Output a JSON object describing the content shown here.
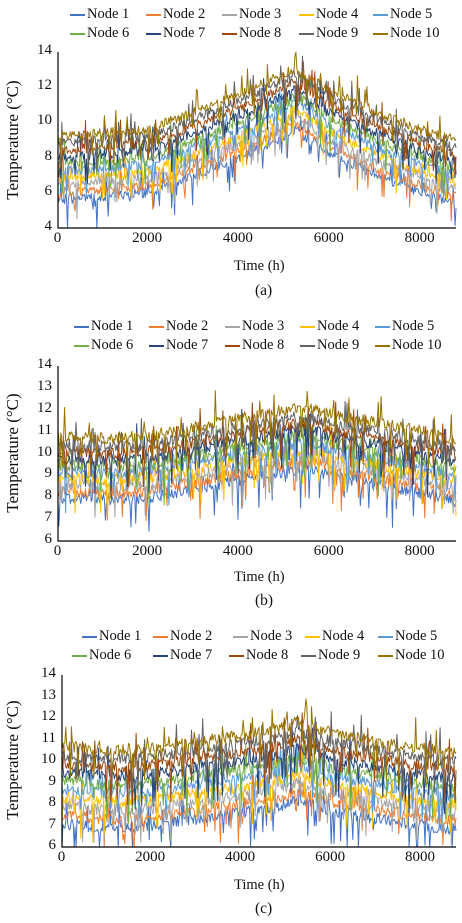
{
  "chart_data": [
    {
      "type": "line",
      "panel_label": "(a)",
      "xlabel": "Time (h)",
      "ylabel": "Temperature (°C)",
      "xlim": [
        0,
        8760
      ],
      "ylim": [
        4,
        14
      ],
      "x_ticks": [
        "0",
        "2000",
        "4000",
        "6000",
        "8000"
      ],
      "y_ticks": [
        "4",
        "6",
        "8",
        "10",
        "12",
        "14"
      ],
      "legend_position": "top",
      "series": [
        {
          "name": "Node 1",
          "color": "#4472c4",
          "values_at_x": {
            "x": [
              0,
              1000,
              2000,
              3000,
              4000,
              5000,
              5200,
              6000,
              7000,
              8000,
              8760
            ],
            "y": [
              5.6,
              5.8,
              6.0,
              7.0,
              8.0,
              9.2,
              9.6,
              8.2,
              7.0,
              6.0,
              5.4
            ]
          }
        },
        {
          "name": "Node 2",
          "color": "#ed7d31",
          "values_at_x": {
            "x": [
              0,
              1000,
              2000,
              3000,
              4000,
              5000,
              5200,
              6000,
              7000,
              8000,
              8760
            ],
            "y": [
              6.0,
              6.2,
              6.4,
              7.4,
              8.4,
              9.6,
              10.0,
              8.6,
              7.4,
              6.4,
              5.8
            ]
          }
        },
        {
          "name": "Node 3",
          "color": "#a5a5a5",
          "values_at_x": {
            "x": [
              0,
              1000,
              2000,
              3000,
              4000,
              5000,
              5200,
              6000,
              7000,
              8000,
              8760
            ],
            "y": [
              6.4,
              6.6,
              6.8,
              7.8,
              8.8,
              10.0,
              10.4,
              9.0,
              7.8,
              6.8,
              6.2
            ]
          }
        },
        {
          "name": "Node 4",
          "color": "#ffc000",
          "values_at_x": {
            "x": [
              0,
              1000,
              2000,
              3000,
              4000,
              5000,
              5200,
              6000,
              7000,
              8000,
              8760
            ],
            "y": [
              6.8,
              7.0,
              7.2,
              8.2,
              9.2,
              10.4,
              10.8,
              9.4,
              8.2,
              7.2,
              6.6
            ]
          }
        },
        {
          "name": "Node 5",
          "color": "#5b9bd5",
          "values_at_x": {
            "x": [
              0,
              1000,
              2000,
              3000,
              4000,
              5000,
              5200,
              6000,
              7000,
              8000,
              8760
            ],
            "y": [
              7.2,
              7.4,
              7.6,
              8.6,
              9.6,
              10.8,
              11.2,
              9.8,
              8.6,
              7.6,
              7.0
            ]
          }
        },
        {
          "name": "Node 6",
          "color": "#70ad47",
          "values_at_x": {
            "x": [
              0,
              1000,
              2000,
              3000,
              4000,
              5000,
              5200,
              6000,
              7000,
              8000,
              8760
            ],
            "y": [
              7.6,
              7.8,
              8.0,
              9.0,
              10.0,
              11.2,
              11.6,
              10.2,
              9.0,
              8.0,
              7.4
            ]
          }
        },
        {
          "name": "Node 7",
          "color": "#264478",
          "values_at_x": {
            "x": [
              0,
              1000,
              2000,
              3000,
              4000,
              5000,
              5200,
              6000,
              7000,
              8000,
              8760
            ],
            "y": [
              8.0,
              8.2,
              8.4,
              9.4,
              10.4,
              11.6,
              12.0,
              10.6,
              9.4,
              8.4,
              7.8
            ]
          }
        },
        {
          "name": "Node 8",
          "color": "#9e480e",
          "values_at_x": {
            "x": [
              0,
              1000,
              2000,
              3000,
              4000,
              5000,
              5200,
              6000,
              7000,
              8000,
              8760
            ],
            "y": [
              8.4,
              8.6,
              8.8,
              9.8,
              10.8,
              12.0,
              12.4,
              11.0,
              9.8,
              8.8,
              8.2
            ]
          }
        },
        {
          "name": "Node 9",
          "color": "#636363",
          "values_at_x": {
            "x": [
              0,
              1000,
              2000,
              3000,
              4000,
              5000,
              5200,
              6000,
              7000,
              8000,
              8760
            ],
            "y": [
              8.8,
              9.0,
              9.2,
              10.2,
              11.2,
              12.4,
              12.8,
              11.4,
              10.2,
              9.2,
              8.6
            ]
          }
        },
        {
          "name": "Node 10",
          "color": "#997300",
          "values_at_x": {
            "x": [
              0,
              1000,
              2000,
              3000,
              4000,
              5000,
              5200,
              6000,
              7000,
              8000,
              8760
            ],
            "y": [
              9.2,
              9.4,
              9.6,
              10.6,
              11.6,
              12.8,
              13.0,
              11.8,
              10.6,
              9.6,
              9.0
            ]
          }
        }
      ]
    },
    {
      "type": "line",
      "panel_label": "(b)",
      "xlabel": "Time (h)",
      "ylabel": "Temperature (°C)",
      "xlim": [
        0,
        8760
      ],
      "ylim": [
        6,
        14
      ],
      "x_ticks": [
        "0",
        "2000",
        "4000",
        "6000",
        "8000"
      ],
      "y_ticks": [
        "6",
        "7",
        "8",
        "9",
        "10",
        "11",
        "12",
        "13",
        "14"
      ],
      "legend_position": "top",
      "series": [
        {
          "name": "Node 1",
          "color": "#4472c4",
          "values_at_x": {
            "x": [
              0,
              1000,
              2000,
              3000,
              4000,
              5000,
              5600,
              6000,
              7000,
              8000,
              8760
            ],
            "y": [
              8.0,
              7.9,
              8.0,
              8.4,
              8.8,
              9.2,
              9.3,
              9.0,
              8.6,
              8.2,
              7.8
            ]
          }
        },
        {
          "name": "Node 2",
          "color": "#ed7d31",
          "values_at_x": {
            "x": [
              0,
              1000,
              2000,
              3000,
              4000,
              5000,
              5600,
              6000,
              7000,
              8000,
              8760
            ],
            "y": [
              8.3,
              8.2,
              8.3,
              8.7,
              9.1,
              9.5,
              9.6,
              9.3,
              8.9,
              8.5,
              8.1
            ]
          }
        },
        {
          "name": "Node 3",
          "color": "#a5a5a5",
          "values_at_x": {
            "x": [
              0,
              1000,
              2000,
              3000,
              4000,
              5000,
              5600,
              6000,
              7000,
              8000,
              8760
            ],
            "y": [
              8.6,
              8.5,
              8.6,
              9.0,
              9.4,
              9.8,
              9.9,
              9.6,
              9.2,
              8.8,
              8.4
            ]
          }
        },
        {
          "name": "Node 4",
          "color": "#ffc000",
          "values_at_x": {
            "x": [
              0,
              1000,
              2000,
              3000,
              4000,
              5000,
              5600,
              6000,
              7000,
              8000,
              8760
            ],
            "y": [
              8.9,
              8.8,
              8.9,
              9.3,
              9.7,
              10.1,
              10.2,
              9.9,
              9.5,
              9.1,
              8.7
            ]
          }
        },
        {
          "name": "Node 5",
          "color": "#5b9bd5",
          "values_at_x": {
            "x": [
              0,
              1000,
              2000,
              3000,
              4000,
              5000,
              5600,
              6000,
              7000,
              8000,
              8760
            ],
            "y": [
              9.2,
              9.1,
              9.2,
              9.6,
              10.0,
              10.4,
              10.5,
              10.2,
              9.8,
              9.4,
              9.0
            ]
          }
        },
        {
          "name": "Node 6",
          "color": "#70ad47",
          "values_at_x": {
            "x": [
              0,
              1000,
              2000,
              3000,
              4000,
              5000,
              5600,
              6000,
              7000,
              8000,
              8760
            ],
            "y": [
              9.5,
              9.4,
              9.5,
              9.9,
              10.3,
              10.7,
              10.8,
              10.5,
              10.1,
              9.7,
              9.3
            ]
          }
        },
        {
          "name": "Node 7",
          "color": "#264478",
          "values_at_x": {
            "x": [
              0,
              1000,
              2000,
              3000,
              4000,
              5000,
              5600,
              6000,
              7000,
              8000,
              8760
            ],
            "y": [
              9.8,
              9.7,
              9.8,
              10.2,
              10.6,
              11.0,
              11.1,
              10.8,
              10.4,
              10.0,
              9.6
            ]
          }
        },
        {
          "name": "Node 8",
          "color": "#9e480e",
          "values_at_x": {
            "x": [
              0,
              1000,
              2000,
              3000,
              4000,
              5000,
              5600,
              6000,
              7000,
              8000,
              8760
            ],
            "y": [
              10.1,
              10.0,
              10.1,
              10.5,
              10.9,
              11.3,
              11.4,
              11.1,
              10.7,
              10.3,
              9.9
            ]
          }
        },
        {
          "name": "Node 9",
          "color": "#636363",
          "values_at_x": {
            "x": [
              0,
              1000,
              2000,
              3000,
              4000,
              5000,
              5600,
              6000,
              7000,
              8000,
              8760
            ],
            "y": [
              10.4,
              10.3,
              10.4,
              10.8,
              11.2,
              11.6,
              11.7,
              11.4,
              11.0,
              10.6,
              10.2
            ]
          }
        },
        {
          "name": "Node 10",
          "color": "#997300",
          "values_at_x": {
            "x": [
              0,
              1000,
              2000,
              3000,
              4000,
              5000,
              5600,
              6000,
              7000,
              8000,
              8760
            ],
            "y": [
              10.8,
              10.7,
              10.8,
              11.2,
              11.6,
              12.0,
              12.1,
              11.8,
              11.4,
              11.0,
              10.6
            ]
          }
        }
      ]
    },
    {
      "type": "line",
      "panel_label": "(c)",
      "xlabel": "Time (h)",
      "ylabel": "Temperature (°C)",
      "xlim": [
        0,
        8760
      ],
      "ylim": [
        6,
        14
      ],
      "x_ticks": [
        "0",
        "2000",
        "4000",
        "6000",
        "8000"
      ],
      "y_ticks": [
        "6",
        "7",
        "8",
        "9",
        "10",
        "11",
        "12",
        "13",
        "14"
      ],
      "legend_position": "top",
      "series": [
        {
          "name": "Node 1",
          "color": "#4472c4",
          "values_at_x": {
            "x": [
              0,
              1000,
              2000,
              3000,
              4000,
              5000,
              5200,
              6000,
              7000,
              8000,
              8760
            ],
            "y": [
              7.1,
              6.9,
              7.0,
              7.3,
              7.6,
              8.0,
              8.2,
              7.7,
              7.3,
              7.0,
              6.8
            ]
          }
        },
        {
          "name": "Node 2",
          "color": "#ed7d31",
          "values_at_x": {
            "x": [
              0,
              1000,
              2000,
              3000,
              4000,
              5000,
              5200,
              6000,
              7000,
              8000,
              8760
            ],
            "y": [
              7.5,
              7.3,
              7.4,
              7.7,
              8.0,
              8.4,
              8.6,
              8.1,
              7.7,
              7.4,
              7.2
            ]
          }
        },
        {
          "name": "Node 3",
          "color": "#a5a5a5",
          "values_at_x": {
            "x": [
              0,
              1000,
              2000,
              3000,
              4000,
              5000,
              5200,
              6000,
              7000,
              8000,
              8760
            ],
            "y": [
              7.9,
              7.7,
              7.8,
              8.1,
              8.4,
              8.8,
              9.0,
              8.5,
              8.1,
              7.8,
              7.6
            ]
          }
        },
        {
          "name": "Node 4",
          "color": "#ffc000",
          "values_at_x": {
            "x": [
              0,
              1000,
              2000,
              3000,
              4000,
              5000,
              5200,
              6000,
              7000,
              8000,
              8760
            ],
            "y": [
              8.3,
              8.1,
              8.2,
              8.5,
              8.8,
              9.2,
              9.4,
              8.9,
              8.5,
              8.2,
              8.0
            ]
          }
        },
        {
          "name": "Node 5",
          "color": "#5b9bd5",
          "values_at_x": {
            "x": [
              0,
              1000,
              2000,
              3000,
              4000,
              5000,
              5200,
              6000,
              7000,
              8000,
              8760
            ],
            "y": [
              8.7,
              8.5,
              8.6,
              8.9,
              9.2,
              9.6,
              9.8,
              9.3,
              8.9,
              8.6,
              8.4
            ]
          }
        },
        {
          "name": "Node 6",
          "color": "#70ad47",
          "values_at_x": {
            "x": [
              0,
              1000,
              2000,
              3000,
              4000,
              5000,
              5200,
              6000,
              7000,
              8000,
              8760
            ],
            "y": [
              9.1,
              8.9,
              9.0,
              9.3,
              9.6,
              10.0,
              10.2,
              9.7,
              9.3,
              9.0,
              8.8
            ]
          }
        },
        {
          "name": "Node 7",
          "color": "#264478",
          "values_at_x": {
            "x": [
              0,
              1000,
              2000,
              3000,
              4000,
              5000,
              5200,
              6000,
              7000,
              8000,
              8760
            ],
            "y": [
              9.5,
              9.3,
              9.4,
              9.7,
              10.0,
              10.4,
              10.6,
              10.1,
              9.7,
              9.4,
              9.2
            ]
          }
        },
        {
          "name": "Node 8",
          "color": "#9e480e",
          "values_at_x": {
            "x": [
              0,
              1000,
              2000,
              3000,
              4000,
              5000,
              5200,
              6000,
              7000,
              8000,
              8760
            ],
            "y": [
              9.9,
              9.7,
              9.8,
              10.1,
              10.4,
              10.8,
              11.0,
              10.5,
              10.1,
              9.8,
              9.6
            ]
          }
        },
        {
          "name": "Node 9",
          "color": "#636363",
          "values_at_x": {
            "x": [
              0,
              1000,
              2000,
              3000,
              4000,
              5000,
              5200,
              6000,
              7000,
              8000,
              8760
            ],
            "y": [
              10.3,
              10.1,
              10.2,
              10.5,
              10.8,
              11.2,
              11.4,
              10.9,
              10.5,
              10.2,
              10.0
            ]
          }
        },
        {
          "name": "Node 10",
          "color": "#997300",
          "values_at_x": {
            "x": [
              0,
              1000,
              2000,
              3000,
              4000,
              5000,
              5200,
              6000,
              7000,
              8000,
              8760
            ],
            "y": [
              10.7,
              10.5,
              10.6,
              10.9,
              11.2,
              11.6,
              11.8,
              11.3,
              10.9,
              10.6,
              10.4
            ]
          }
        }
      ]
    }
  ]
}
